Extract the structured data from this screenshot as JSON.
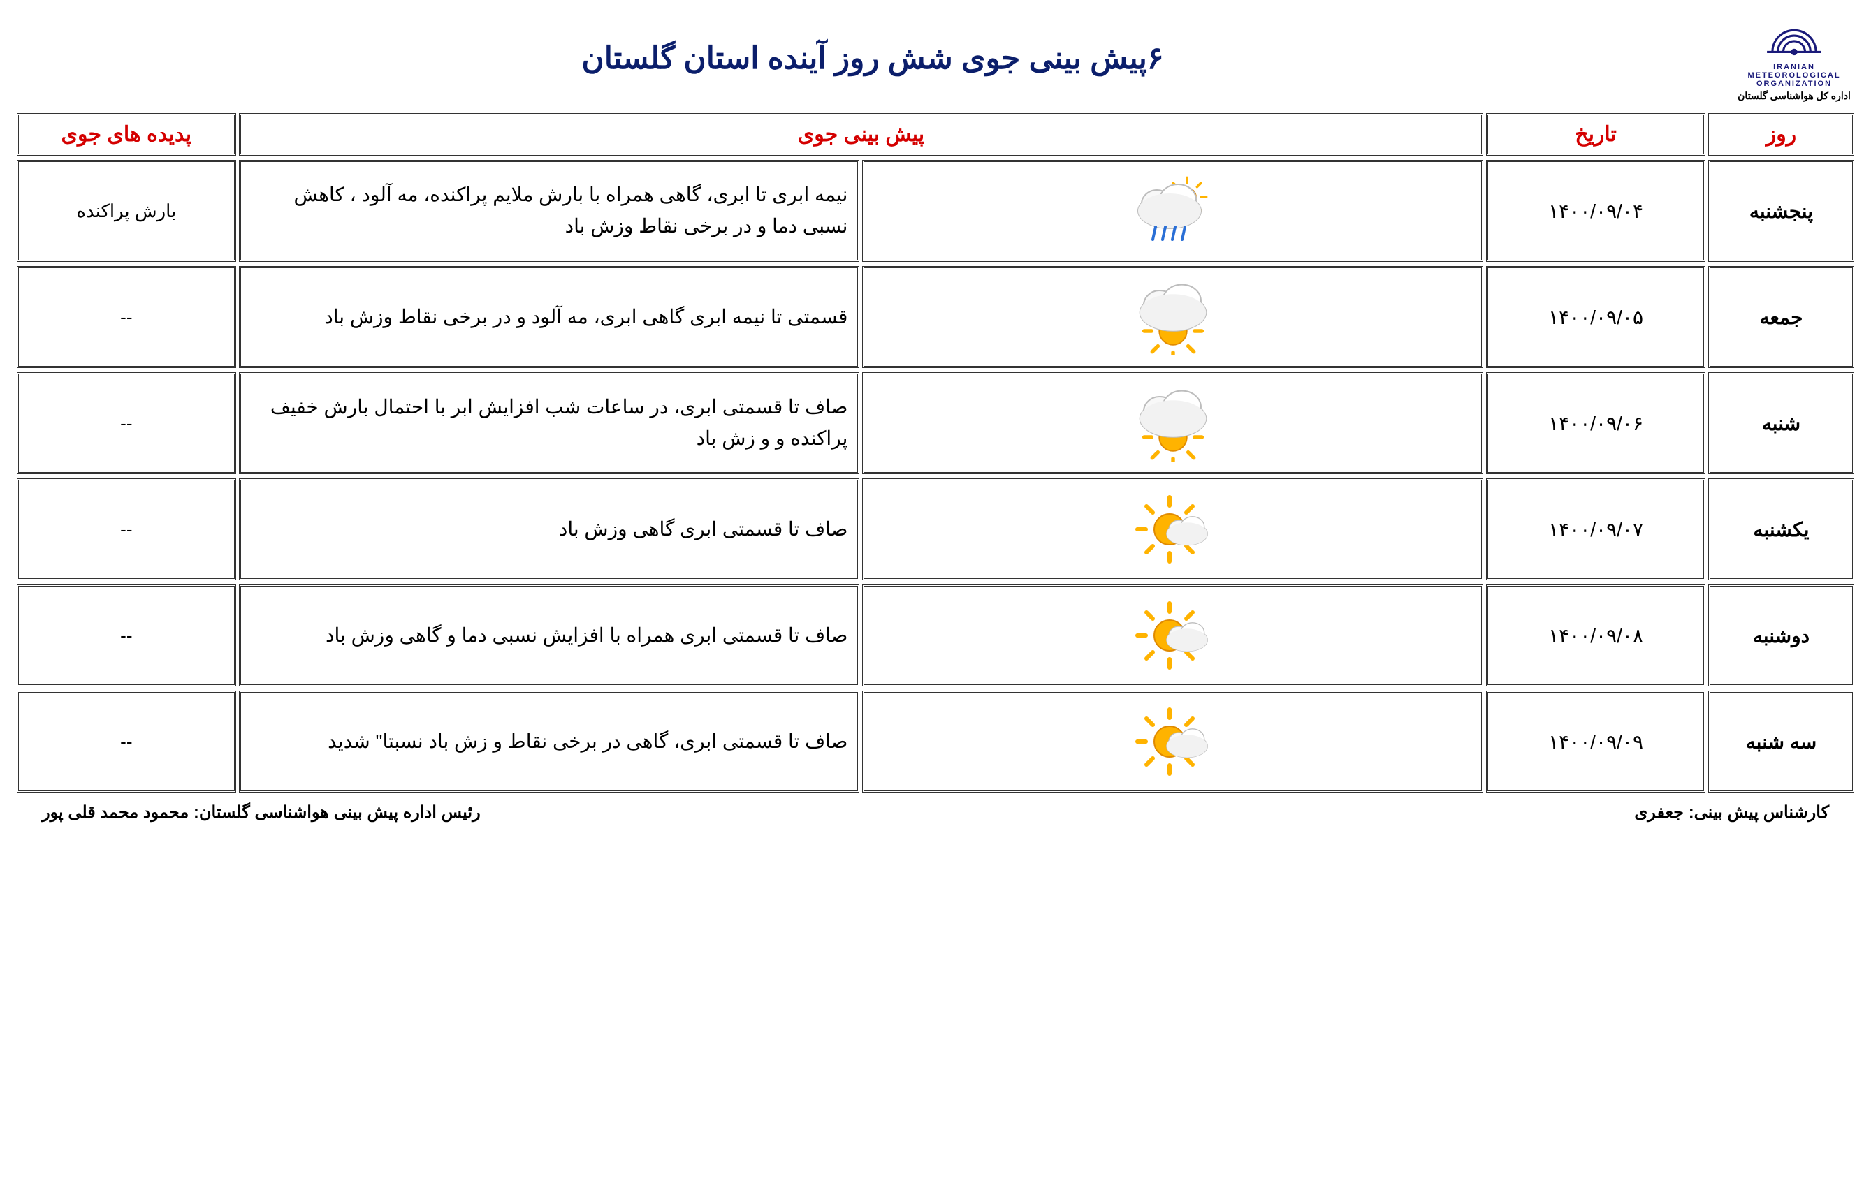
{
  "header": {
    "org_line1": "IRANIAN METEOROLOGICAL ORGANIZATION",
    "org_line2": "اداره کل هواشناسی گلستان",
    "title": "۶پیش بینی جوی شش روز آینده استان گلستان"
  },
  "columns": {
    "day": "روز",
    "date": "تاریخ",
    "forecast": "پیش بینی جوی",
    "phenomena": "پدیده های جوی"
  },
  "rows": [
    {
      "day": "پنجشنبه",
      "date": "۱۴۰۰/۰۹/۰۴",
      "icon": "rain",
      "desc": "نیمه ابری تا ابری، گاهی همراه با بارش ملایم پراکنده، مه آلود ، کاهش نسبی دما  و در برخی نقاط وزش باد",
      "phen": "بارش پراکنده"
    },
    {
      "day": "جمعه",
      "date": "۱۴۰۰/۰۹/۰۵",
      "icon": "cloud_sun",
      "desc": "قسمتی تا نیمه ابری گاهی ابری، مه آلود  و در برخی نقاط وزش باد",
      "phen": "--"
    },
    {
      "day": "شنبه",
      "date": "۱۴۰۰/۰۹/۰۶",
      "icon": "cloud_sun",
      "desc": "صاف تا قسمتی ابری، در ساعات شب افزایش ابر با احتمال بارش خفیف پراکنده  و و زش باد",
      "phen": "--"
    },
    {
      "day": "یکشنبه",
      "date": "۱۴۰۰/۰۹/۰۷",
      "icon": "sun_cloud",
      "desc": "صاف تا قسمتی ابری گاهی وزش باد",
      "phen": "--"
    },
    {
      "day": "دوشنبه",
      "date": "۱۴۰۰/۰۹/۰۸",
      "icon": "sun_cloud",
      "desc": "صاف تا قسمتی ابری همراه با افزایش نسبی دما  و گاهی  وزش باد",
      "phen": "--"
    },
    {
      "day": "سه شنبه",
      "date": "۱۴۰۰/۰۹/۰۹",
      "icon": "sun_cloud",
      "desc": "صاف تا قسمتی ابری، گاهی در برخی نقاط و زش باد  نسبتا\" شدید",
      "phen": "--"
    }
  ],
  "footer": {
    "expert_label": "کارشناس پیش بینی:",
    "expert_name": "جعفری",
    "chief_label": "رئیس اداره پیش بینی هواشناسی گلستان:",
    "chief_name": "محمود محمد قلی پور"
  },
  "colors": {
    "title": "#0b1e6b",
    "header_text": "#d40000",
    "border": "#333333",
    "sun": "#ffb300",
    "sun_stroke": "#e08a00",
    "cloud": "#f2f2f2",
    "cloud_stroke": "#bdbdbd",
    "rain": "#2a6fd6"
  }
}
